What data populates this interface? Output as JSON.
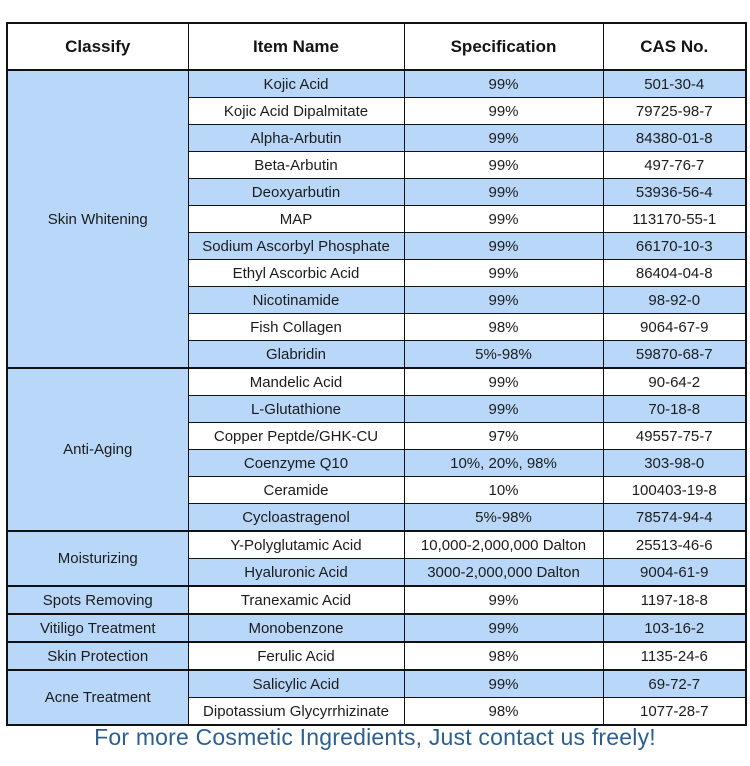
{
  "colors": {
    "row_blue": "#b9d8f9",
    "row_white": "#ffffff",
    "border": "#121212",
    "footer_text": "#2b5f94"
  },
  "table": {
    "headers": [
      "Classify",
      "Item Name",
      "Specification",
      "CAS No."
    ],
    "groups": [
      {
        "classify": "Skin Whitening",
        "items": [
          {
            "name": "Kojic Acid",
            "spec": "99%",
            "cas": "501-30-4"
          },
          {
            "name": "Kojic Acid Dipalmitate",
            "spec": "99%",
            "cas": "79725-98-7"
          },
          {
            "name": "Alpha-Arbutin",
            "spec": "99%",
            "cas": "84380-01-8"
          },
          {
            "name": "Beta-Arbutin",
            "spec": "99%",
            "cas": "497-76-7"
          },
          {
            "name": "Deoxyarbutin",
            "spec": "99%",
            "cas": "53936-56-4"
          },
          {
            "name": "MAP",
            "spec": "99%",
            "cas": "113170-55-1"
          },
          {
            "name": "Sodium Ascorbyl Phosphate",
            "spec": "99%",
            "cas": "66170-10-3"
          },
          {
            "name": "Ethyl Ascorbic Acid",
            "spec": "99%",
            "cas": "86404-04-8"
          },
          {
            "name": "Nicotinamide",
            "spec": "99%",
            "cas": "98-92-0"
          },
          {
            "name": "Fish Collagen",
            "spec": "98%",
            "cas": "9064-67-9"
          },
          {
            "name": "Glabridin",
            "spec": "5%-98%",
            "cas": "59870-68-7"
          }
        ]
      },
      {
        "classify": "Anti-Aging",
        "items": [
          {
            "name": "Mandelic Acid",
            "spec": "99%",
            "cas": "90-64-2"
          },
          {
            "name": "L-Glutathione",
            "spec": "99%",
            "cas": "70-18-8"
          },
          {
            "name": "Copper Peptde/GHK-CU",
            "spec": "97%",
            "cas": "49557-75-7"
          },
          {
            "name": "Coenzyme Q10",
            "spec": "10%, 20%, 98%",
            "cas": "303-98-0"
          },
          {
            "name": "Ceramide",
            "spec": "10%",
            "cas": "100403-19-8"
          },
          {
            "name": "Cycloastragenol",
            "spec": "5%-98%",
            "cas": "78574-94-4"
          }
        ]
      },
      {
        "classify": "Moisturizing",
        "items": [
          {
            "name": "Y-Polyglutamic Acid",
            "spec": "10,000-2,000,000 Dalton",
            "cas": "25513-46-6"
          },
          {
            "name": "Hyaluronic Acid",
            "spec": "3000-2,000,000 Dalton",
            "cas": "9004-61-9"
          }
        ]
      },
      {
        "classify": "Spots Removing",
        "items": [
          {
            "name": "Tranexamic Acid",
            "spec": "99%",
            "cas": "1197-18-8"
          }
        ]
      },
      {
        "classify": "Vitiligo Treatment",
        "items": [
          {
            "name": "Monobenzone",
            "spec": "99%",
            "cas": "103-16-2"
          }
        ]
      },
      {
        "classify": "Skin Protection",
        "items": [
          {
            "name": "Ferulic Acid",
            "spec": "98%",
            "cas": "1135-24-6"
          }
        ]
      },
      {
        "classify": "Acne Treatment",
        "items": [
          {
            "name": "Salicylic Acid",
            "spec": "99%",
            "cas": "69-72-7"
          },
          {
            "name": "Dipotassium Glycyrrhizinate",
            "spec": "98%",
            "cas": "1077-28-7"
          }
        ]
      }
    ]
  },
  "footer": {
    "text": "For more Cosmetic Ingredients, Just contact us freely!"
  }
}
